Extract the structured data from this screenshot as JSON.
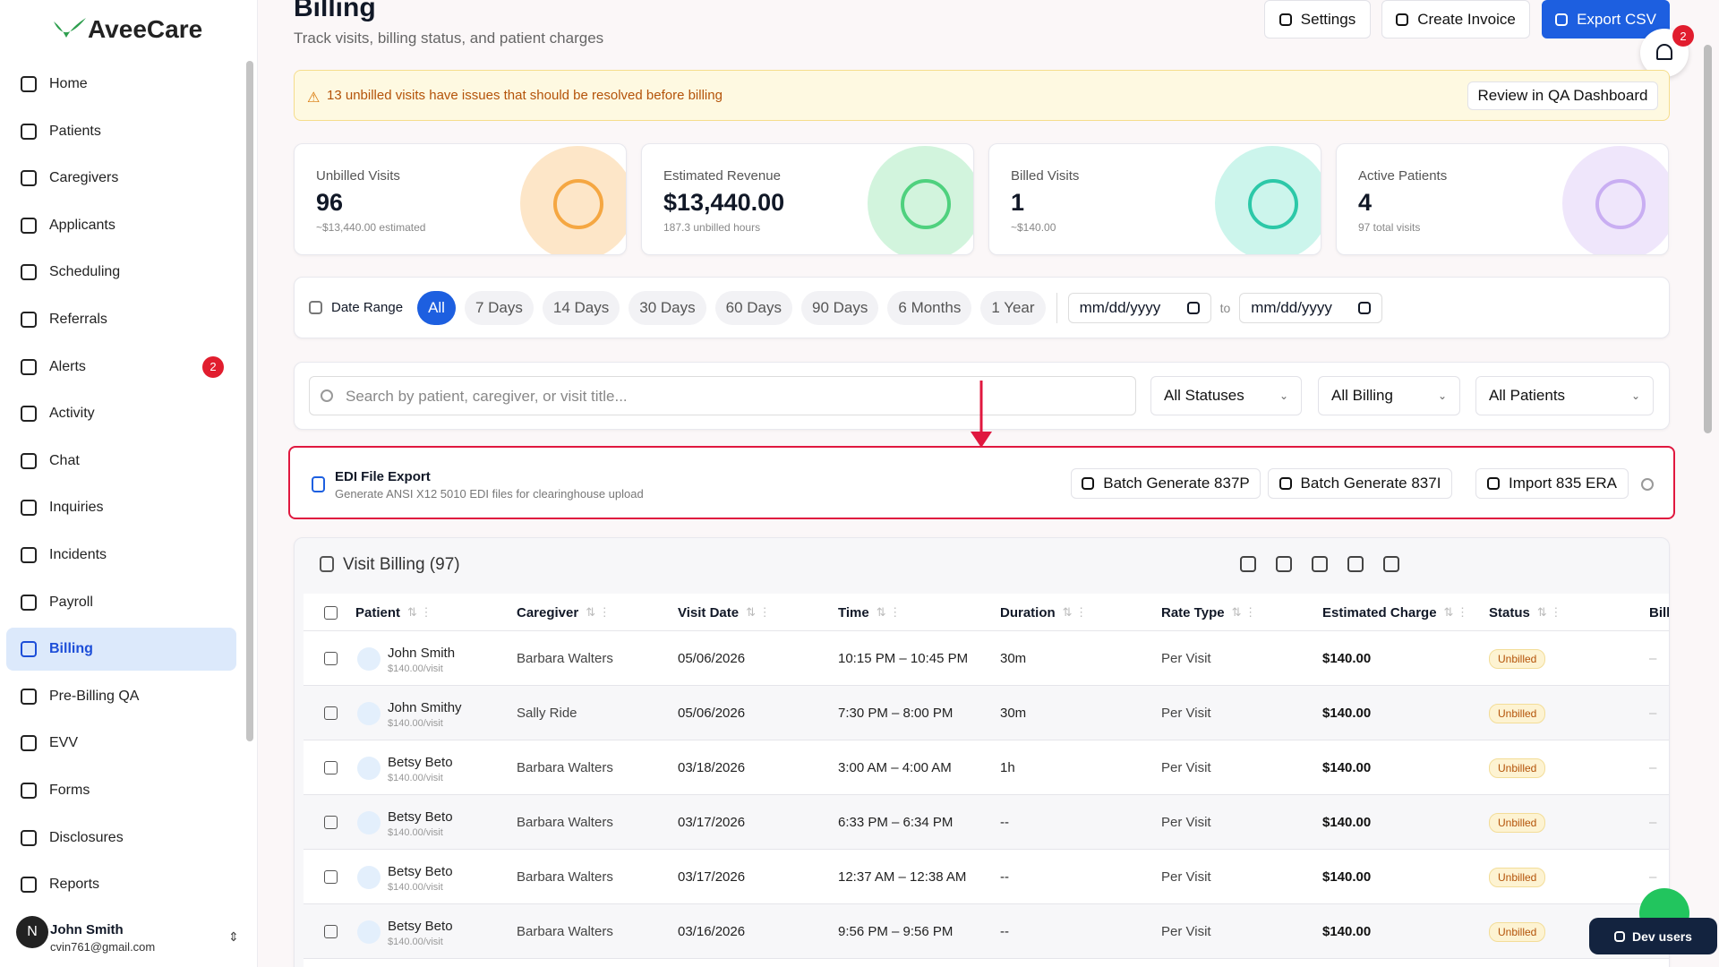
{
  "brand": "AveeCare",
  "nav": [
    {
      "label": "Home"
    },
    {
      "label": "Patients"
    },
    {
      "label": "Caregivers"
    },
    {
      "label": "Applicants"
    },
    {
      "label": "Scheduling"
    },
    {
      "label": "Referrals"
    },
    {
      "label": "Alerts",
      "badge": 2
    },
    {
      "label": "Activity"
    },
    {
      "label": "Chat"
    },
    {
      "label": "Inquiries"
    },
    {
      "label": "Incidents"
    },
    {
      "label": "Payroll"
    },
    {
      "label": "Billing",
      "active": true
    },
    {
      "label": "Pre-Billing QA"
    },
    {
      "label": "EVV"
    },
    {
      "label": "Forms"
    },
    {
      "label": "Disclosures"
    },
    {
      "label": "Reports"
    }
  ],
  "user": {
    "initial": "N",
    "name": "John Smith",
    "email": "cvin761@gmail.com"
  },
  "header": {
    "title": "Billing",
    "subtitle": "Track visits, billing status, and patient charges",
    "buttons": [
      "Settings",
      "Create Invoice",
      "Export CSV"
    ],
    "notifications": 2
  },
  "alert": {
    "message": "13 unbilled visits have issues that should be resolved before billing",
    "action": "Review in QA Dashboard"
  },
  "stats": [
    {
      "label": "Unbilled Visits",
      "value": "96",
      "note": "~$13,440.00 estimated",
      "color": "#fde6c8",
      "icon_color": "#f5a742"
    },
    {
      "label": "Estimated Revenue",
      "value": "$13,440.00",
      "note": "187.3 unbilled hours",
      "color": "#d2f4dd",
      "icon_color": "#4fd17e"
    },
    {
      "label": "Billed Visits",
      "value": "1",
      "note": "~$140.00",
      "color": "#ccf5ec",
      "icon_color": "#2cc8a8"
    },
    {
      "label": "Active Patients",
      "value": "4",
      "note": "97 total visits",
      "color": "#efe6fb",
      "icon_color": "#c9aef2"
    }
  ],
  "date_filter": {
    "label": "Date Range",
    "options": [
      "All",
      "7 Days",
      "14 Days",
      "30 Days",
      "60 Days",
      "90 Days",
      "6 Months",
      "1 Year"
    ],
    "selected": 0,
    "from": "mm/dd/yyyy",
    "separator": "to",
    "to": "mm/dd/yyyy"
  },
  "search": {
    "placeholder": "Search by patient, caregiver, or visit title...",
    "filters": [
      "All Statuses",
      "All Billing",
      "All Patients"
    ]
  },
  "edi": {
    "title": "EDI File Export",
    "subtitle": "Generate ANSI X12 5010 EDI files for clearinghouse upload",
    "buttons": [
      "Batch Generate 837P",
      "Batch Generate 837I",
      "Import 835 ERA"
    ]
  },
  "table": {
    "title": "Visit Billing (97)",
    "columns": [
      "Patient",
      "Caregiver",
      "Visit Date",
      "Time",
      "Duration",
      "Rate Type",
      "Estimated Charge",
      "Status",
      "Bill"
    ],
    "rows": [
      {
        "patient": "John Smith",
        "rate": "$140.00/visit",
        "caregiver": "Barbara Walters",
        "date": "05/06/2026",
        "time": "10:15 PM – 10:45 PM",
        "duration": "30m",
        "rate_type": "Per Visit",
        "charge": "$140.00",
        "status": "Unbilled",
        "billing": "–"
      },
      {
        "patient": "John Smithy",
        "rate": "$140.00/visit",
        "caregiver": "Sally Ride",
        "date": "05/06/2026",
        "time": "7:30 PM – 8:00 PM",
        "duration": "30m",
        "rate_type": "Per Visit",
        "charge": "$140.00",
        "status": "Unbilled",
        "billing": "–"
      },
      {
        "patient": "Betsy Beto",
        "rate": "$140.00/visit",
        "caregiver": "Barbara Walters",
        "date": "03/18/2026",
        "time": "3:00 AM – 4:00 AM",
        "duration": "1h",
        "rate_type": "Per Visit",
        "charge": "$140.00",
        "status": "Unbilled",
        "billing": "–"
      },
      {
        "patient": "Betsy Beto",
        "rate": "$140.00/visit",
        "caregiver": "Barbara Walters",
        "date": "03/17/2026",
        "time": "6:33 PM – 6:34 PM",
        "duration": "--",
        "rate_type": "Per Visit",
        "charge": "$140.00",
        "status": "Unbilled",
        "billing": "–"
      },
      {
        "patient": "Betsy Beto",
        "rate": "$140.00/visit",
        "caregiver": "Barbara Walters",
        "date": "03/17/2026",
        "time": "12:37 AM – 12:38 AM",
        "duration": "--",
        "rate_type": "Per Visit",
        "charge": "$140.00",
        "status": "Unbilled",
        "billing": "–"
      },
      {
        "patient": "Betsy Beto",
        "rate": "$140.00/visit",
        "caregiver": "Barbara Walters",
        "date": "03/16/2026",
        "time": "9:56 PM – 9:56 PM",
        "duration": "--",
        "rate_type": "Per Visit",
        "charge": "$140.00",
        "status": "Unbilled",
        "billing": "–"
      }
    ]
  },
  "dev_button": "Dev users"
}
